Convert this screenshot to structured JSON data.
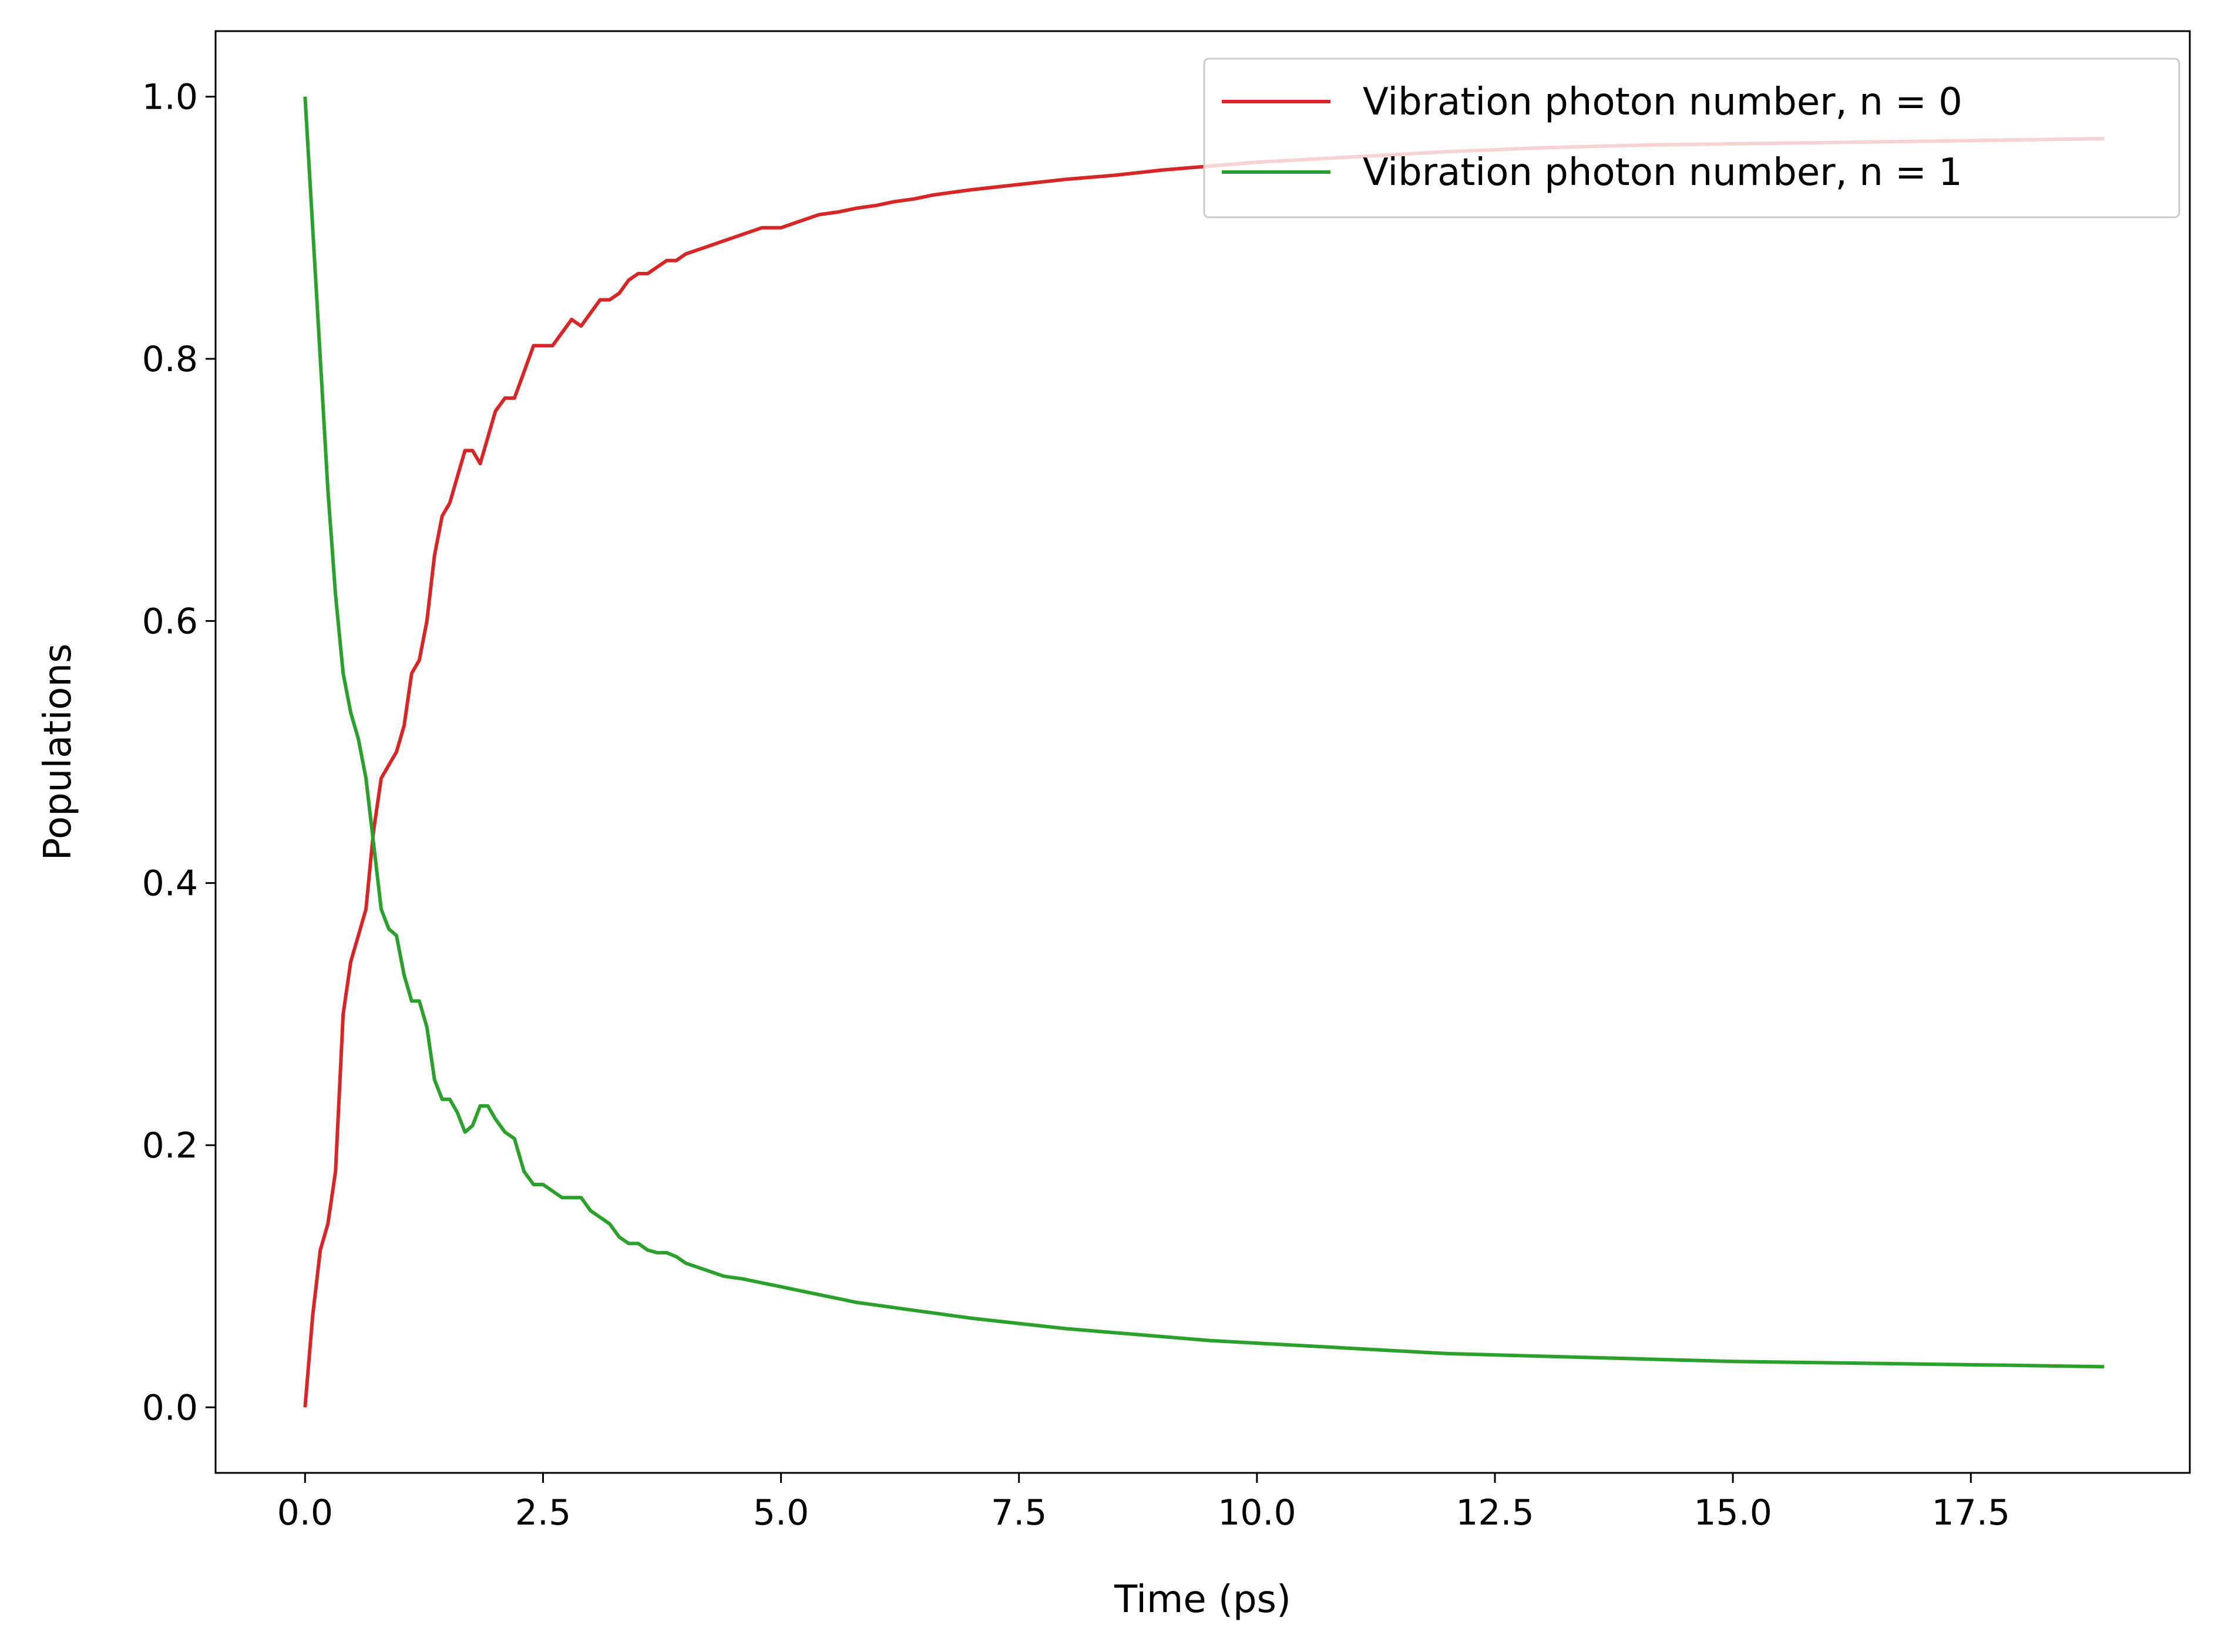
{
  "chart_data": {
    "type": "line",
    "title": "",
    "xlabel": "Time (ps)",
    "ylabel": "Populations",
    "xlim": [
      -0.94,
      19.8
    ],
    "ylim": [
      -0.05,
      1.05
    ],
    "xticks": [
      0.0,
      2.5,
      5.0,
      7.5,
      10.0,
      12.5,
      15.0,
      17.5
    ],
    "xtick_labels": [
      "0.0",
      "2.5",
      "5.0",
      "7.5",
      "10.0",
      "12.5",
      "15.0",
      "17.5"
    ],
    "yticks": [
      0.0,
      0.2,
      0.4,
      0.6,
      0.8,
      1.0
    ],
    "ytick_labels": [
      "0.0",
      "0.2",
      "0.4",
      "0.6",
      "0.8",
      "1.0"
    ],
    "grid": false,
    "legend_position": "top-right",
    "series": [
      {
        "name": "Vibration photon number, n = 0",
        "color": "#d62728",
        "x": [
          0.0,
          0.08,
          0.16,
          0.24,
          0.32,
          0.4,
          0.48,
          0.56,
          0.64,
          0.72,
          0.8,
          0.88,
          0.96,
          1.04,
          1.12,
          1.2,
          1.28,
          1.36,
          1.44,
          1.52,
          1.6,
          1.68,
          1.76,
          1.84,
          1.92,
          2.0,
          2.1,
          2.2,
          2.3,
          2.4,
          2.5,
          2.6,
          2.7,
          2.8,
          2.9,
          3.0,
          3.1,
          3.2,
          3.3,
          3.4,
          3.5,
          3.6,
          3.7,
          3.8,
          3.9,
          4.0,
          4.2,
          4.4,
          4.6,
          4.8,
          5.0,
          5.2,
          5.4,
          5.6,
          5.8,
          6.0,
          6.2,
          6.4,
          6.6,
          6.8,
          7.0,
          7.5,
          8.0,
          8.5,
          9.0,
          9.5,
          10.0,
          11.0,
          12.0,
          13.0,
          14.0,
          15.0,
          16.0,
          17.0,
          18.0,
          18.9
        ],
        "values": [
          0.0,
          0.07,
          0.12,
          0.14,
          0.18,
          0.3,
          0.34,
          0.36,
          0.38,
          0.44,
          0.48,
          0.49,
          0.5,
          0.52,
          0.56,
          0.57,
          0.6,
          0.65,
          0.68,
          0.69,
          0.71,
          0.73,
          0.73,
          0.72,
          0.74,
          0.76,
          0.77,
          0.77,
          0.79,
          0.81,
          0.81,
          0.81,
          0.82,
          0.83,
          0.825,
          0.835,
          0.845,
          0.845,
          0.85,
          0.86,
          0.865,
          0.865,
          0.87,
          0.875,
          0.875,
          0.88,
          0.885,
          0.89,
          0.895,
          0.9,
          0.9,
          0.905,
          0.91,
          0.912,
          0.915,
          0.917,
          0.92,
          0.922,
          0.925,
          0.927,
          0.929,
          0.933,
          0.937,
          0.94,
          0.944,
          0.947,
          0.95,
          0.954,
          0.958,
          0.961,
          0.963,
          0.964,
          0.965,
          0.966,
          0.967,
          0.968
        ]
      },
      {
        "name": "Vibration photon number, n = 1",
        "color": "#2ca02c",
        "x": [
          0.0,
          0.08,
          0.16,
          0.24,
          0.32,
          0.4,
          0.48,
          0.56,
          0.64,
          0.72,
          0.8,
          0.88,
          0.96,
          1.04,
          1.12,
          1.2,
          1.28,
          1.36,
          1.44,
          1.52,
          1.6,
          1.68,
          1.76,
          1.84,
          1.92,
          2.0,
          2.1,
          2.2,
          2.3,
          2.4,
          2.5,
          2.6,
          2.7,
          2.8,
          2.9,
          3.0,
          3.1,
          3.2,
          3.3,
          3.4,
          3.5,
          3.6,
          3.7,
          3.8,
          3.9,
          4.0,
          4.2,
          4.4,
          4.6,
          4.8,
          5.0,
          5.2,
          5.4,
          5.6,
          5.8,
          6.0,
          6.2,
          6.4,
          6.6,
          6.8,
          7.0,
          7.5,
          8.0,
          8.5,
          9.0,
          9.5,
          10.0,
          11.0,
          12.0,
          13.0,
          14.0,
          15.0,
          16.0,
          17.0,
          18.0,
          18.9
        ],
        "values": [
          1.0,
          0.9,
          0.8,
          0.7,
          0.62,
          0.56,
          0.53,
          0.51,
          0.48,
          0.43,
          0.38,
          0.365,
          0.36,
          0.33,
          0.31,
          0.31,
          0.29,
          0.25,
          0.235,
          0.235,
          0.225,
          0.21,
          0.215,
          0.23,
          0.23,
          0.22,
          0.21,
          0.205,
          0.18,
          0.17,
          0.17,
          0.165,
          0.16,
          0.16,
          0.16,
          0.15,
          0.145,
          0.14,
          0.13,
          0.125,
          0.125,
          0.12,
          0.118,
          0.118,
          0.115,
          0.11,
          0.105,
          0.1,
          0.098,
          0.095,
          0.092,
          0.089,
          0.086,
          0.083,
          0.08,
          0.078,
          0.076,
          0.074,
          0.072,
          0.07,
          0.068,
          0.064,
          0.06,
          0.057,
          0.054,
          0.051,
          0.049,
          0.045,
          0.041,
          0.039,
          0.037,
          0.035,
          0.034,
          0.033,
          0.032,
          0.031
        ]
      }
    ]
  }
}
